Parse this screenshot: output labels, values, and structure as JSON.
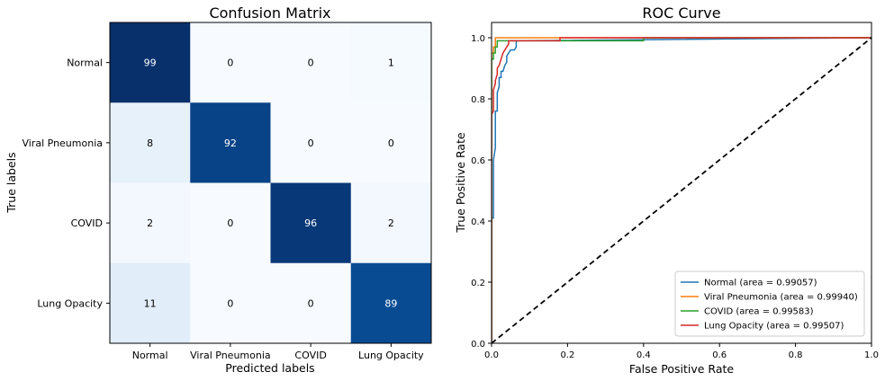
{
  "chart_data": [
    {
      "type": "heatmap",
      "title": "Confusion Matrix",
      "xlabel": "Predicted labels",
      "ylabel": "True labels",
      "x_categories": [
        "Normal",
        "Viral Pneumonia",
        "COVID",
        "Lung Opacity"
      ],
      "y_categories": [
        "Normal",
        "Viral Pneumonia",
        "COVID",
        "Lung Opacity"
      ],
      "values": [
        [
          99,
          0,
          0,
          1
        ],
        [
          8,
          92,
          0,
          0
        ],
        [
          2,
          0,
          96,
          2
        ],
        [
          11,
          0,
          0,
          89
        ]
      ],
      "colormap": "Blues",
      "vmin": 0,
      "vmax": 99
    },
    {
      "type": "line",
      "title": "ROC Curve",
      "xlabel": "False Positive Rate",
      "ylabel": "True Positive Rate",
      "xlim": [
        0.0,
        1.0
      ],
      "ylim": [
        0.0,
        1.05
      ],
      "xticks": [
        "0.0",
        "0.2",
        "0.4",
        "0.6",
        "0.8",
        "1.0"
      ],
      "yticks": [
        "0.0",
        "0.2",
        "0.4",
        "0.6",
        "0.8",
        "1.0"
      ],
      "legend_position": "lower-right",
      "series": [
        {
          "name": "Normal (area = 0.99057)",
          "color": "#1f77b4",
          "x": [
            0.0,
            0.0,
            0.0,
            0.005,
            0.005,
            0.01,
            0.01,
            0.015,
            0.015,
            0.02,
            0.02,
            0.025,
            0.025,
            0.03,
            0.035,
            0.04,
            0.04,
            0.05,
            0.06,
            0.065,
            0.065,
            1.0
          ],
          "y": [
            0.0,
            0.4,
            0.41,
            0.41,
            0.6,
            0.64,
            0.76,
            0.76,
            0.82,
            0.84,
            0.87,
            0.87,
            0.89,
            0.89,
            0.91,
            0.92,
            0.94,
            0.96,
            0.96,
            0.97,
            0.99,
            1.0
          ]
        },
        {
          "name": "Viral Pneumonia (area = 0.99940)",
          "color": "#ff7f0e",
          "x": [
            0.0,
            0.0,
            0.005,
            0.005,
            0.01,
            0.01,
            1.0
          ],
          "y": [
            0.0,
            0.95,
            0.95,
            0.97,
            0.97,
            1.0,
            1.0
          ]
        },
        {
          "name": "COVID (area = 0.99583)",
          "color": "#2ca02c",
          "x": [
            0.0,
            0.0,
            0.005,
            0.005,
            0.01,
            0.01,
            0.015,
            0.015,
            0.4,
            0.4,
            1.0
          ],
          "y": [
            0.0,
            0.93,
            0.93,
            0.95,
            0.95,
            0.97,
            0.97,
            0.99,
            0.99,
            1.0,
            1.0
          ]
        },
        {
          "name": "Lung Opacity (area = 0.99507)",
          "color": "#d62728",
          "x": [
            0.0,
            0.0,
            0.005,
            0.005,
            0.01,
            0.01,
            0.015,
            0.015,
            0.02,
            0.025,
            0.03,
            0.035,
            0.04,
            0.045,
            0.045,
            0.18,
            0.18,
            1.0
          ],
          "y": [
            0.0,
            0.75,
            0.76,
            0.83,
            0.85,
            0.86,
            0.88,
            0.9,
            0.91,
            0.93,
            0.95,
            0.96,
            0.97,
            0.98,
            0.99,
            0.99,
            1.0,
            1.0
          ]
        },
        {
          "name": "",
          "color": "#000000",
          "dashed": true,
          "x": [
            0.0,
            1.0
          ],
          "y": [
            0.0,
            1.0
          ]
        }
      ]
    }
  ]
}
